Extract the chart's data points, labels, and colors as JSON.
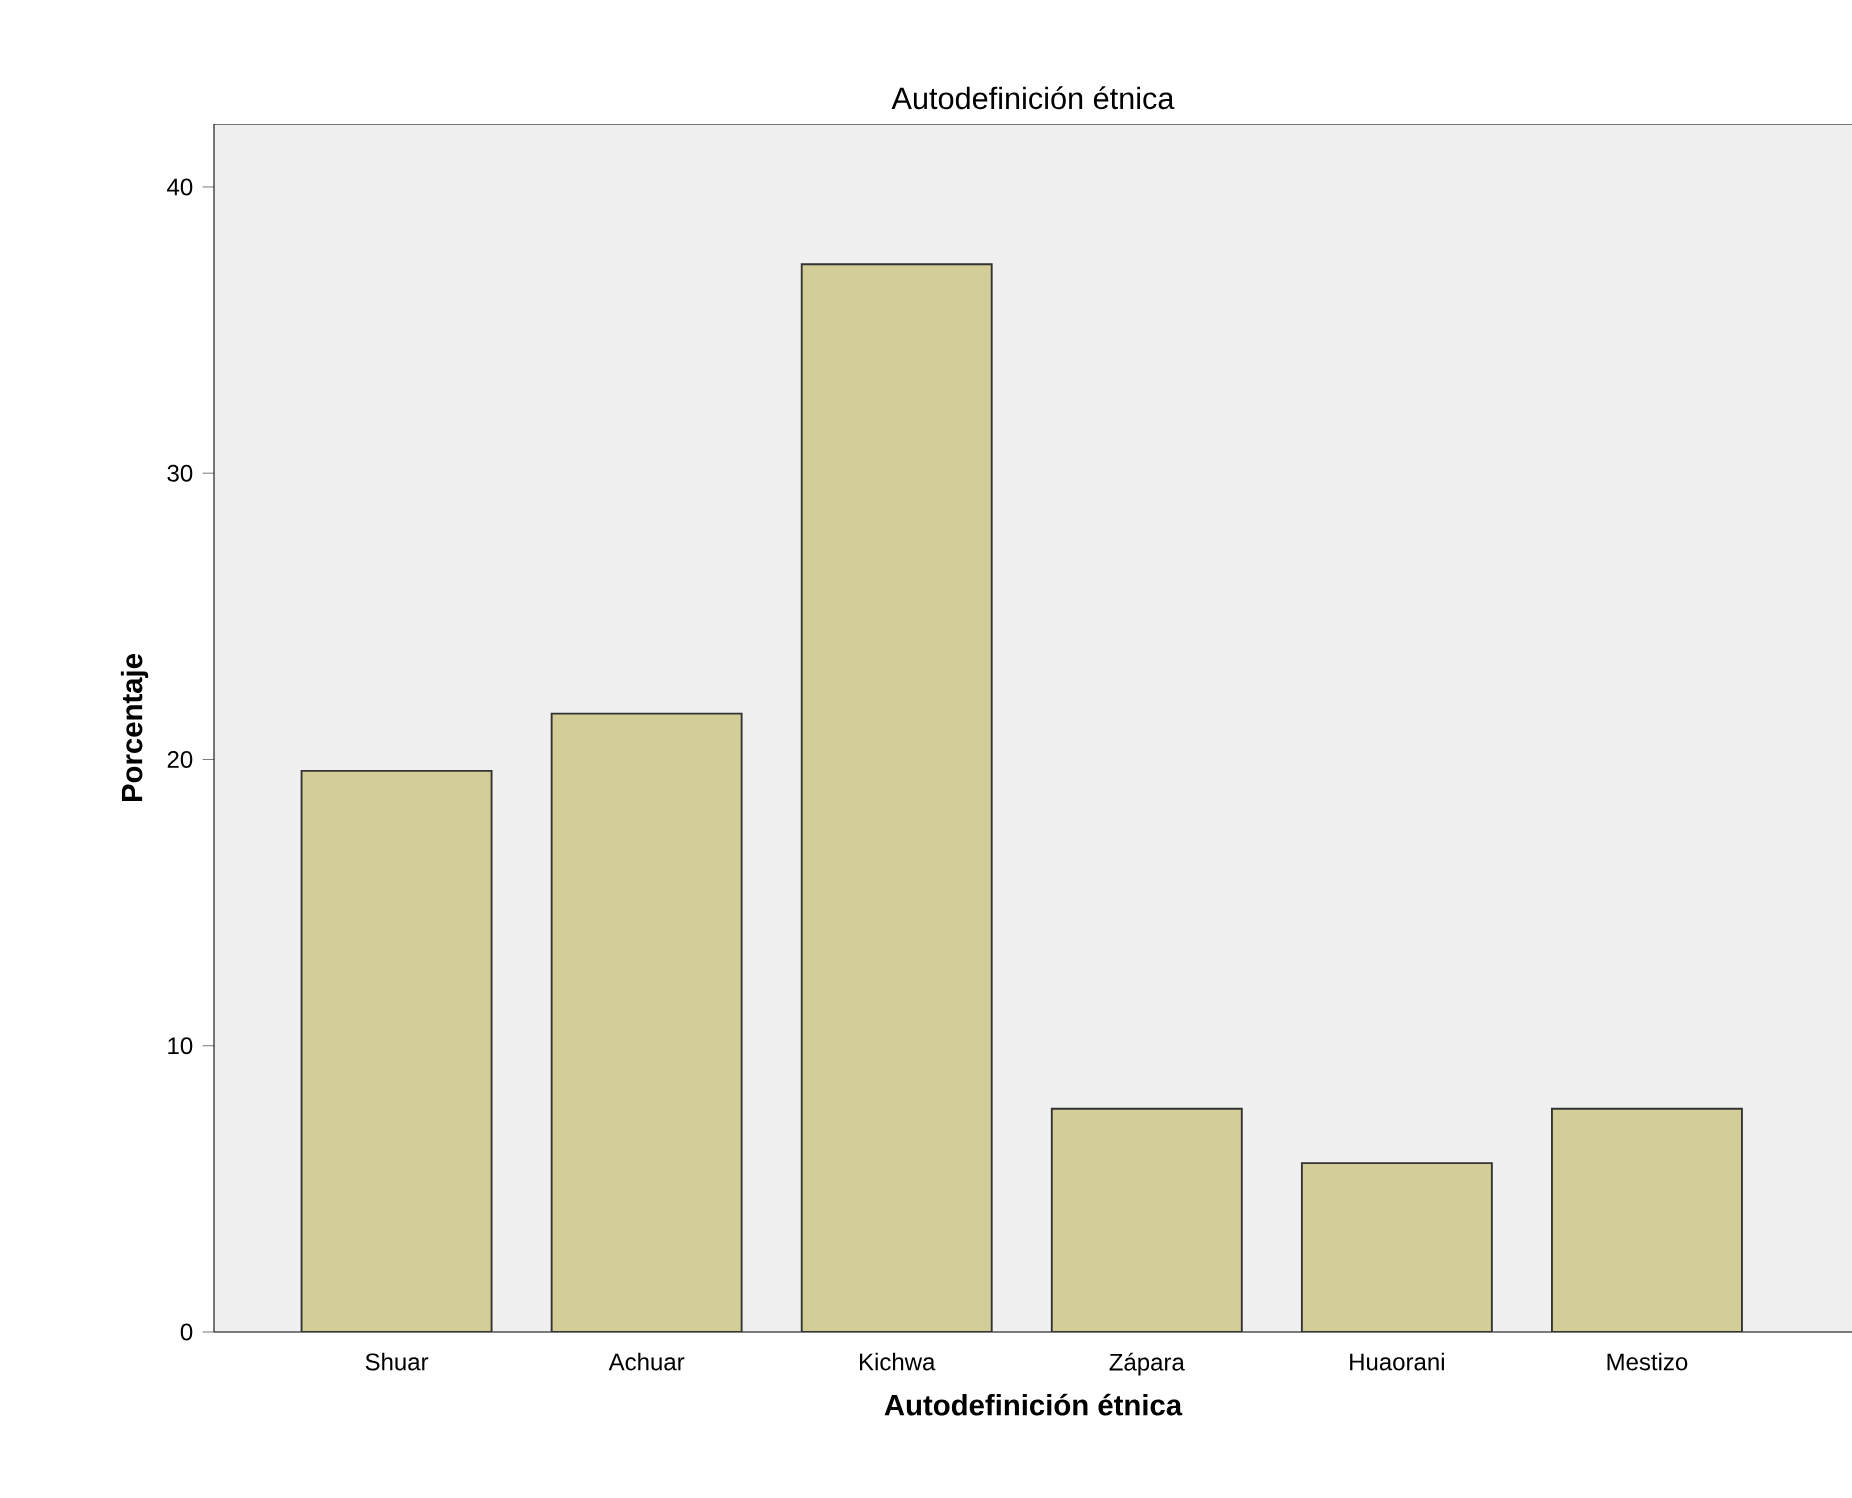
{
  "chart_data": {
    "type": "bar",
    "title": "Autodefinición étnica",
    "xlabel": "Autodefinición étnica",
    "ylabel": "Porcentaje",
    "categories": [
      "Shuar",
      "Achuar",
      "Kichwa",
      "Zápara",
      "Huaorani",
      "Mestizo"
    ],
    "values": [
      19.6,
      21.6,
      37.3,
      7.8,
      5.9,
      7.8
    ],
    "color": "#d3ce97",
    "ylim": [
      0,
      42.2
    ],
    "yticks": [
      0,
      10,
      20,
      30,
      40
    ],
    "grid": false
  }
}
